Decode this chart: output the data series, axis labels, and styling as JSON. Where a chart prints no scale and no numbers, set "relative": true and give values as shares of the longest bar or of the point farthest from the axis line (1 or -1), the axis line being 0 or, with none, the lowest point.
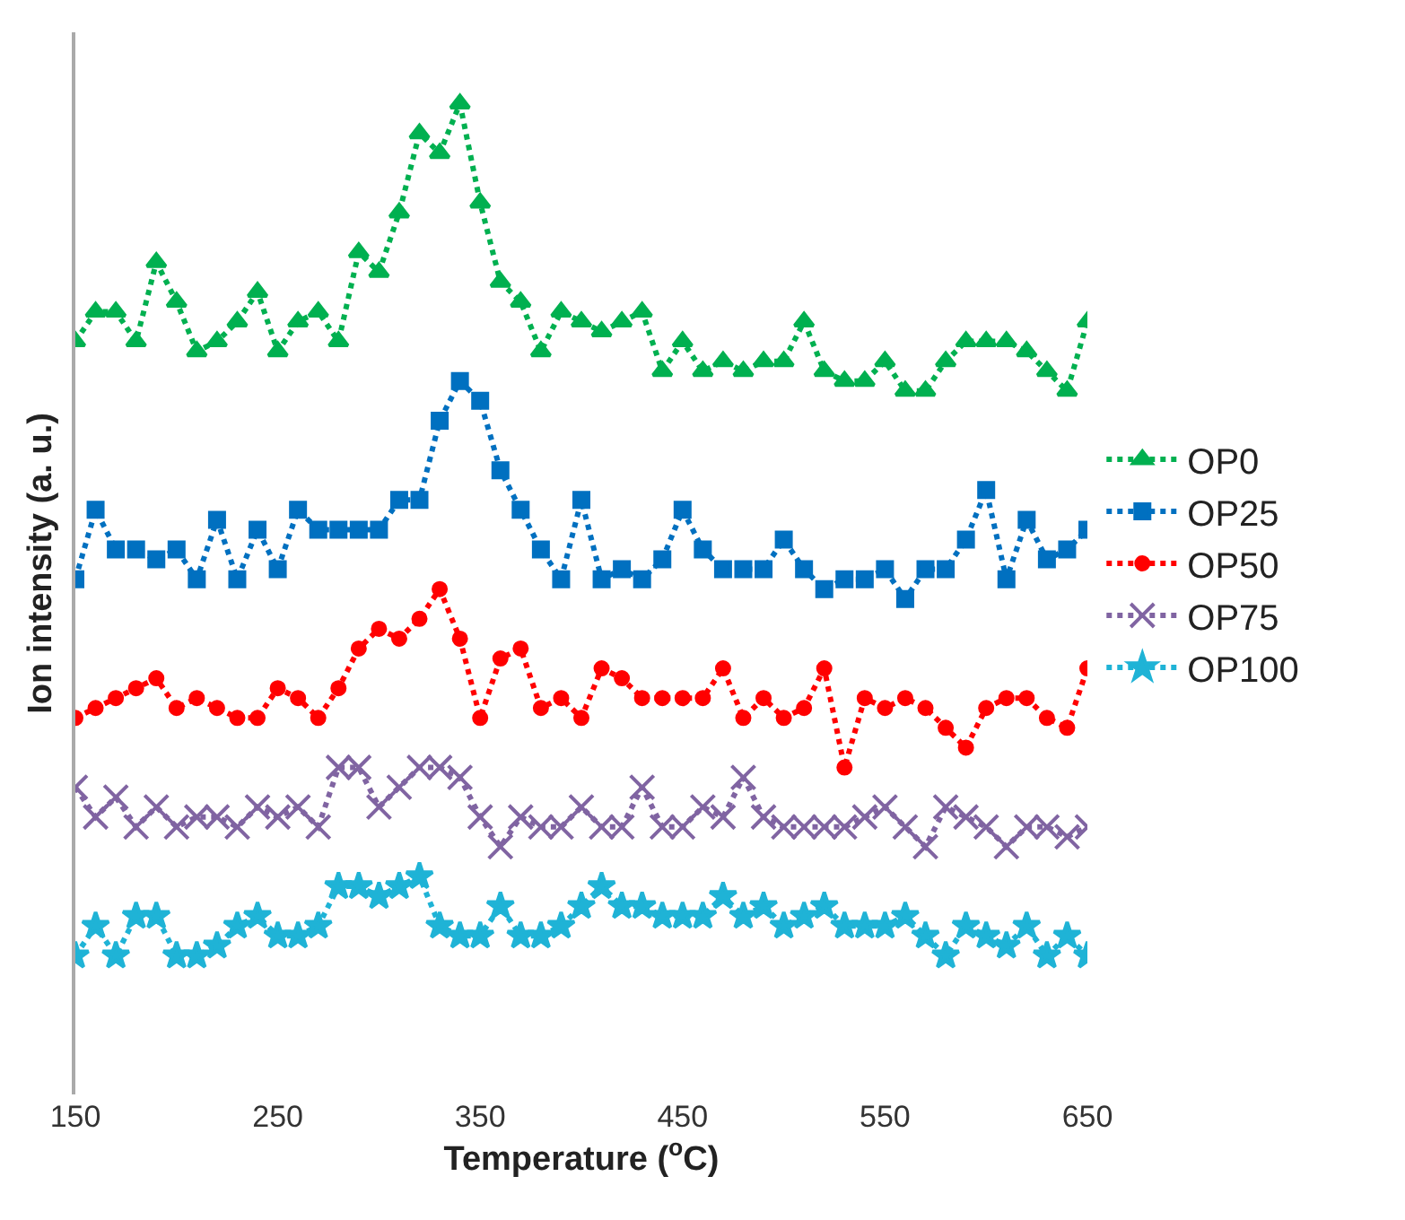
{
  "chart_data": {
    "type": "line",
    "relative": true,
    "xlabel": "Temperature ($^{o}$C)",
    "ylabel": "Ion intensity (a. u.)",
    "x": [
      150,
      160,
      170,
      180,
      190,
      200,
      210,
      220,
      230,
      240,
      250,
      260,
      270,
      280,
      290,
      300,
      310,
      320,
      330,
      340,
      350,
      360,
      370,
      380,
      390,
      400,
      410,
      420,
      430,
      440,
      450,
      460,
      470,
      480,
      490,
      500,
      510,
      520,
      530,
      540,
      550,
      560,
      570,
      580,
      590,
      600,
      610,
      620,
      630,
      640,
      650
    ],
    "xlim": [
      150,
      650
    ],
    "xticks": [
      150,
      250,
      350,
      450,
      550,
      650
    ],
    "line_style": "dotted",
    "legend": "right",
    "series": [
      {
        "name": "OP0",
        "color": "#00b050",
        "marker": "triangle",
        "values": [
          0.76,
          0.79,
          0.79,
          0.76,
          0.84,
          0.8,
          0.75,
          0.76,
          0.78,
          0.81,
          0.75,
          0.78,
          0.79,
          0.76,
          0.85,
          0.83,
          0.89,
          0.97,
          0.95,
          1,
          0.9,
          0.82,
          0.8,
          0.75,
          0.79,
          0.78,
          0.77,
          0.78,
          0.79,
          0.73,
          0.76,
          0.73,
          0.74,
          0.73,
          0.74,
          0.74,
          0.78,
          0.73,
          0.72,
          0.72,
          0.74,
          0.71,
          0.71,
          0.74,
          0.76,
          0.76,
          0.76,
          0.75,
          0.73,
          0.71,
          0.78
        ]
      },
      {
        "name": "OP25",
        "color": "#0070c0",
        "marker": "square",
        "values": [
          0.52,
          0.59,
          0.55,
          0.55,
          0.54,
          0.55,
          0.52,
          0.58,
          0.52,
          0.57,
          0.53,
          0.59,
          0.57,
          0.57,
          0.57,
          0.57,
          0.6,
          0.6,
          0.68,
          0.72,
          0.7,
          0.63,
          0.59,
          0.55,
          0.52,
          0.6,
          0.52,
          0.53,
          0.52,
          0.54,
          0.59,
          0.55,
          0.53,
          0.53,
          0.53,
          0.56,
          0.53,
          0.51,
          0.52,
          0.52,
          0.53,
          0.5,
          0.53,
          0.53,
          0.56,
          0.61,
          0.52,
          0.58,
          0.54,
          0.55,
          0.57
        ]
      },
      {
        "name": "OP50",
        "color": "#ff0000",
        "marker": "circle",
        "values": [
          0.38,
          0.39,
          0.4,
          0.41,
          0.42,
          0.39,
          0.4,
          0.39,
          0.38,
          0.38,
          0.41,
          0.4,
          0.38,
          0.41,
          0.45,
          0.47,
          0.46,
          0.48,
          0.51,
          0.46,
          0.38,
          0.44,
          0.45,
          0.39,
          0.4,
          0.38,
          0.43,
          0.42,
          0.4,
          0.4,
          0.4,
          0.4,
          0.43,
          0.38,
          0.4,
          0.38,
          0.39,
          0.43,
          0.33,
          0.4,
          0.39,
          0.4,
          0.39,
          0.37,
          0.35,
          0.39,
          0.4,
          0.4,
          0.38,
          0.37,
          0.43
        ]
      },
      {
        "name": "OP75",
        "color": "#8064a2",
        "marker": "cross",
        "values": [
          0.31,
          0.28,
          0.3,
          0.27,
          0.29,
          0.27,
          0.28,
          0.28,
          0.27,
          0.29,
          0.28,
          0.29,
          0.27,
          0.33,
          0.33,
          0.29,
          0.31,
          0.33,
          0.33,
          0.32,
          0.28,
          0.25,
          0.28,
          0.27,
          0.27,
          0.29,
          0.27,
          0.27,
          0.31,
          0.27,
          0.27,
          0.29,
          0.28,
          0.32,
          0.28,
          0.27,
          0.27,
          0.27,
          0.27,
          0.28,
          0.29,
          0.27,
          0.25,
          0.29,
          0.28,
          0.27,
          0.25,
          0.27,
          0.27,
          0.26,
          0.27
        ]
      },
      {
        "name": "OP100",
        "color": "#1fb3d6",
        "marker": "star",
        "values": [
          0.14,
          0.17,
          0.14,
          0.18,
          0.18,
          0.14,
          0.14,
          0.15,
          0.17,
          0.18,
          0.16,
          0.16,
          0.17,
          0.21,
          0.21,
          0.2,
          0.21,
          0.22,
          0.17,
          0.16,
          0.16,
          0.19,
          0.16,
          0.16,
          0.17,
          0.19,
          0.21,
          0.19,
          0.19,
          0.18,
          0.18,
          0.18,
          0.2,
          0.18,
          0.19,
          0.17,
          0.18,
          0.19,
          0.17,
          0.17,
          0.17,
          0.18,
          0.16,
          0.14,
          0.17,
          0.16,
          0.15,
          0.17,
          0.14,
          0.16,
          0.14
        ]
      }
    ]
  }
}
